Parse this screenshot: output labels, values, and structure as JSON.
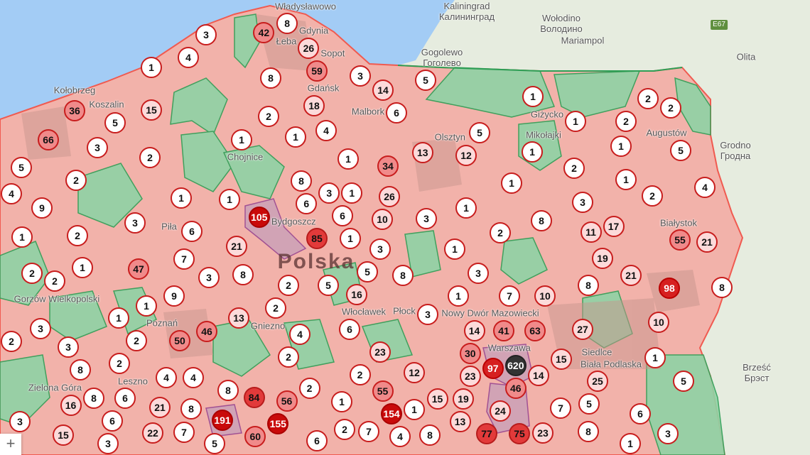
{
  "map": {
    "colors": {
      "sea": "#a3ccf5",
      "land": "#e6ecdf",
      "region_pink": "#f2b2aa",
      "region_green": "#8fd3a5",
      "border_red": "#f05a50",
      "border_green": "#2e9e55",
      "marker_border": "#c81d1d",
      "marker_max": "#333333"
    },
    "places": [
      {
        "name": "Łeba"
      },
      {
        "name": "Władysławowo"
      },
      {
        "name": "Gdynia"
      },
      {
        "name": "Sopot"
      },
      {
        "name": "Gdańsk"
      },
      {
        "name": "Kołobrzeg"
      },
      {
        "name": "Koszalin"
      },
      {
        "name": "Malbork"
      },
      {
        "name": "Chojnice"
      },
      {
        "name": "Piła"
      },
      {
        "name": "Bydgoszcz"
      },
      {
        "name": "Polska"
      },
      {
        "name": "Gniezno"
      },
      {
        "name": "Poznań"
      },
      {
        "name": "Włocławek"
      },
      {
        "name": "Płock"
      },
      {
        "name": "Nowy Dwór Mazowiecki"
      },
      {
        "name": "Warszawa"
      },
      {
        "name": "Siedlce"
      },
      {
        "name": "Biała Podlaska"
      },
      {
        "name": "Białystok"
      },
      {
        "name": "Augustów"
      },
      {
        "name": "Giżycko"
      },
      {
        "name": "Mikołajki"
      },
      {
        "name": "Olsztyn"
      },
      {
        "name": "Gorzów Wielkopolski"
      },
      {
        "name": "Zielona Góra"
      },
      {
        "name": "Leszno"
      },
      {
        "name": "Kaliningrad\nКалининград"
      },
      {
        "name": "Wołodino\nВолодино"
      },
      {
        "name": "Gogolewo\nГоголево"
      },
      {
        "name": "Mariampol"
      },
      {
        "name": "Olita"
      },
      {
        "name": "Grodno\nГродна"
      },
      {
        "name": "Brześć\nБрэст"
      }
    ],
    "road_shields": [
      "E67"
    ],
    "clusters": [
      8,
      42,
      3,
      4,
      26,
      1,
      59,
      8,
      3,
      18,
      5,
      14,
      6,
      1,
      2,
      2,
      36,
      15,
      5,
      2,
      1,
      2,
      66,
      3,
      2,
      1,
      1,
      4,
      5,
      12,
      13,
      1,
      1,
      5,
      5,
      2,
      1,
      34,
      2,
      1,
      2,
      4,
      4,
      9,
      1,
      1,
      8,
      3,
      1,
      26,
      1,
      3,
      105,
      6,
      6,
      10,
      3,
      1,
      8,
      3,
      1,
      2,
      6,
      2,
      11,
      17,
      55,
      21,
      21,
      85,
      1,
      3,
      1,
      19,
      7,
      1,
      47,
      5,
      8,
      3,
      21,
      98,
      8,
      2,
      2,
      3,
      8,
      2,
      5,
      8,
      9,
      16,
      7,
      10,
      1,
      13,
      2,
      6,
      3,
      1,
      10,
      3,
      50,
      46,
      14,
      41,
      63,
      27,
      2,
      1,
      30,
      3,
      2,
      2,
      4,
      23,
      1,
      15,
      620,
      97,
      23,
      14,
      25,
      5,
      8,
      4,
      4,
      2,
      2,
      12,
      19,
      46,
      8,
      84,
      56,
      2,
      16,
      5,
      21,
      8,
      6,
      8,
      1,
      55,
      15,
      24,
      7,
      6,
      191,
      155,
      154,
      1,
      13,
      3,
      15,
      6,
      22,
      7,
      60,
      2,
      7,
      4,
      8,
      77,
      75,
      23,
      8,
      3,
      5,
      6,
      3,
      1
    ],
    "zoom_in_label": "+"
  }
}
